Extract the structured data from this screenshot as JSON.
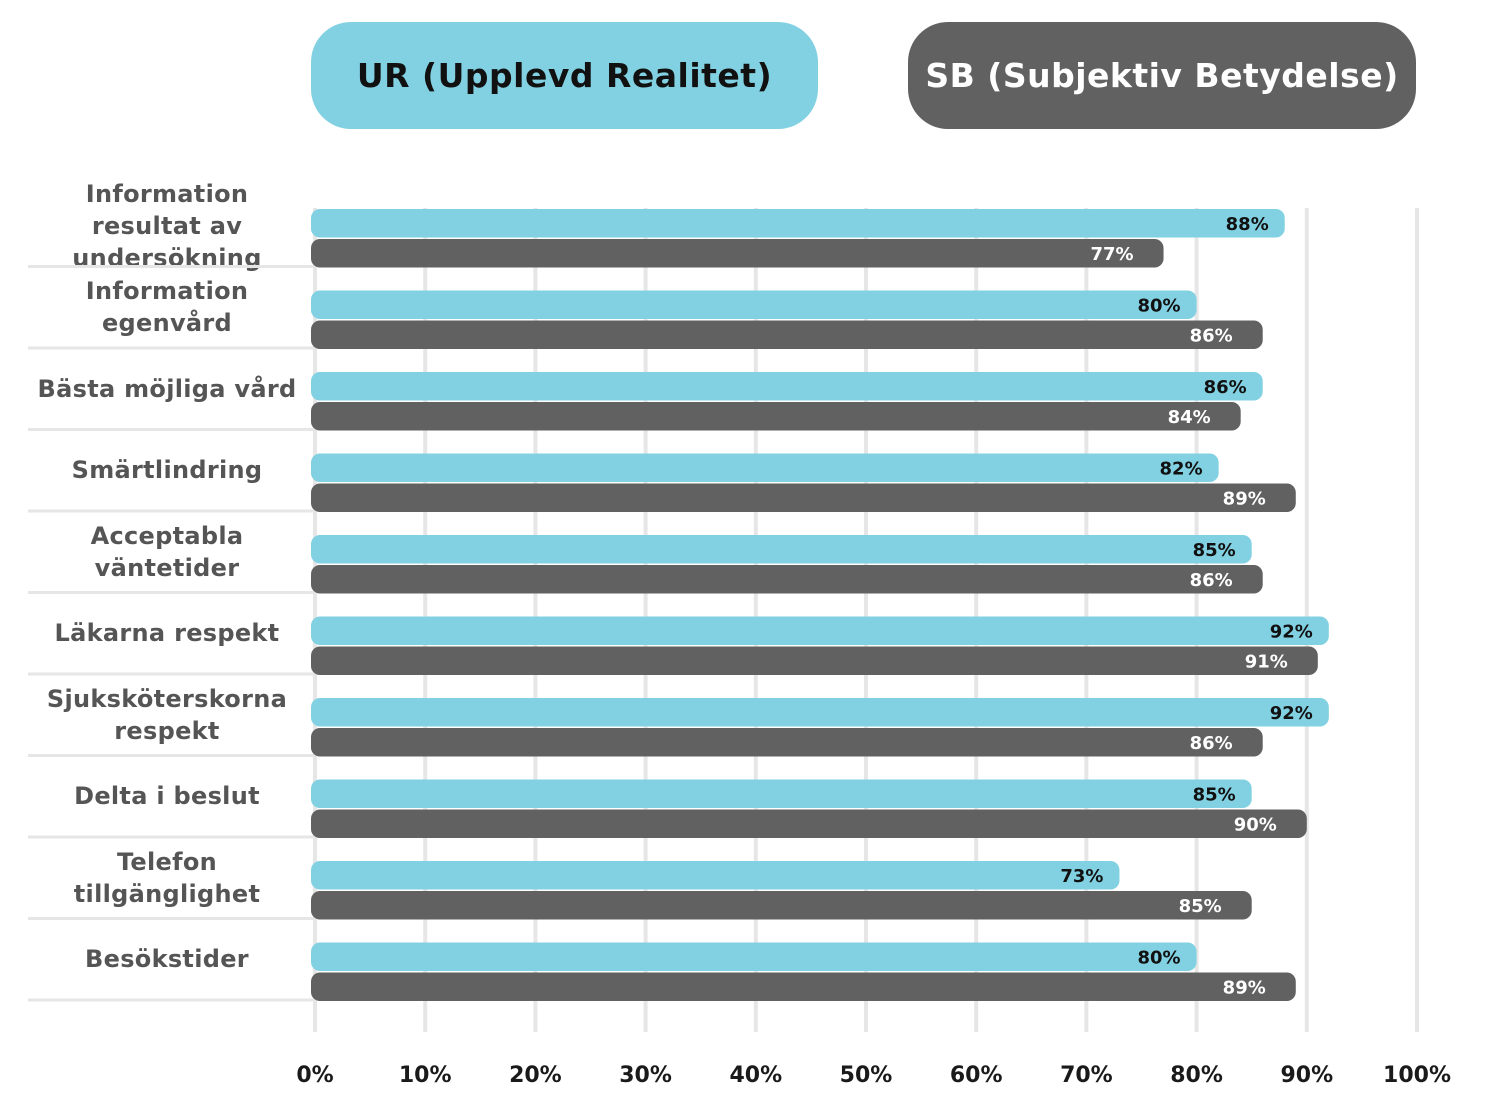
{
  "legend": {
    "ur_label": "UR (Upplevd Realitet)",
    "sb_label": "SB (Subjektiv Betydelse)"
  },
  "colors": {
    "ur": "#82d1e2",
    "sb": "#616161",
    "grid": "#e6e6e6",
    "divider": "#e6e6e6",
    "ur_value_text": "#111111",
    "sb_value_text": "#ffffff",
    "tick_text": "#1a1a1a",
    "category_text": "#555555"
  },
  "chart_data": {
    "type": "bar",
    "orientation": "horizontal",
    "categories": [
      "Information resultat av undersökning",
      "Information egenvård",
      "Bästa möjliga vård",
      "Smärtlindring",
      "Acceptabla väntetider",
      "Läkarna respekt",
      "Sjuksköterskorna respekt",
      "Delta i beslut",
      "Telefon tillgänglighet",
      "Besökstider"
    ],
    "series": [
      {
        "name": "UR (Upplevd Realitet)",
        "values": [
          88,
          80,
          86,
          82,
          85,
          92,
          92,
          85,
          73,
          80
        ]
      },
      {
        "name": "SB (Subjektiv Betydelse)",
        "values": [
          77,
          86,
          84,
          89,
          86,
          91,
          86,
          90,
          85,
          89
        ]
      }
    ],
    "value_labels": {
      "ur": [
        "88%",
        "80%",
        "86%",
        "82%",
        "85%",
        "92%",
        "92%",
        "85%",
        "73%",
        "80%"
      ],
      "sb": [
        "77%",
        "86%",
        "84%",
        "89%",
        "86%",
        "91%",
        "86%",
        "90%",
        "85%",
        "89%"
      ]
    },
    "xlim": [
      0,
      100
    ],
    "x_ticks": [
      "0%",
      "10%",
      "20%",
      "30%",
      "40%",
      "50%",
      "60%",
      "70%",
      "80%",
      "90%",
      "100%"
    ],
    "title": "",
    "xlabel": "",
    "ylabel": "",
    "grid": true,
    "legend_position": "top"
  }
}
